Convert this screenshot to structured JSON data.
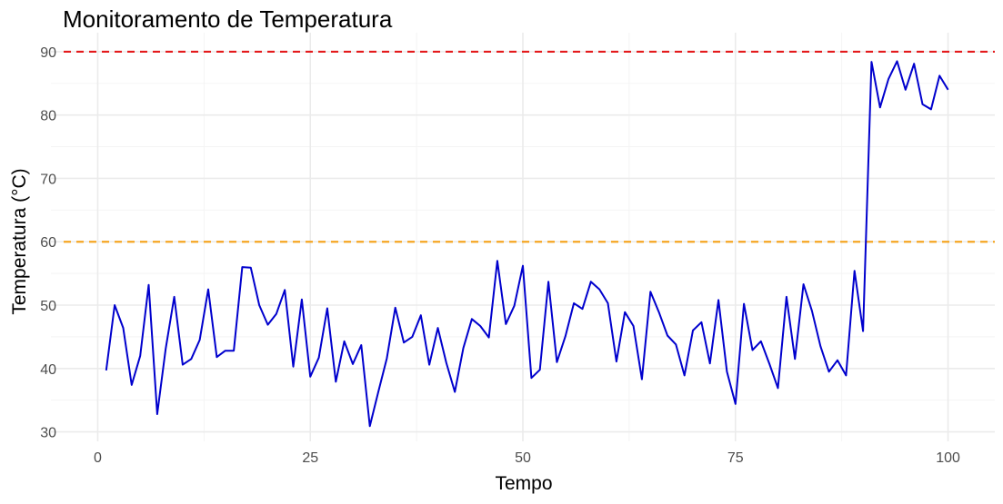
{
  "chart_data": {
    "type": "line",
    "title": "Monitoramento de Temperatura",
    "xlabel": "Tempo",
    "ylabel": "Temperatura (°C)",
    "xlim": [
      -5.5,
      105.5
    ],
    "ylim": [
      28.5,
      93
    ],
    "x_ticks": [
      0,
      25,
      50,
      75,
      100
    ],
    "y_ticks": [
      30,
      40,
      50,
      60,
      70,
      80,
      90
    ],
    "grid": true,
    "reference_lines": [
      {
        "y": 90,
        "color": "#e41a1c",
        "style": "dashed"
      },
      {
        "y": 60,
        "color": "#f5a623",
        "style": "dashed"
      }
    ],
    "series": [
      {
        "color": "#0000cd",
        "x": [
          1,
          2,
          3,
          4,
          5,
          6,
          7,
          8,
          9,
          10,
          11,
          12,
          13,
          14,
          15,
          16,
          17,
          18,
          19,
          20,
          21,
          22,
          23,
          24,
          25,
          26,
          27,
          28,
          29,
          30,
          31,
          32,
          33,
          34,
          35,
          36,
          37,
          38,
          39,
          40,
          41,
          42,
          43,
          44,
          45,
          46,
          47,
          48,
          49,
          50,
          51,
          52,
          53,
          54,
          55,
          56,
          57,
          58,
          59,
          60,
          61,
          62,
          63,
          64,
          65,
          66,
          67,
          68,
          69,
          70,
          71,
          72,
          73,
          74,
          75,
          76,
          77,
          78,
          79,
          80,
          81,
          82,
          83,
          84,
          85,
          86,
          87,
          88,
          89,
          90,
          91,
          92,
          93,
          94,
          95,
          96,
          97,
          98,
          99,
          100
        ],
        "values": [
          39.7,
          50.0,
          46.4,
          37.4,
          42.0,
          53.2,
          32.8,
          43.1,
          51.3,
          40.6,
          41.5,
          44.5,
          52.5,
          41.8,
          42.8,
          42.8,
          56.0,
          55.9,
          50.0,
          46.9,
          48.6,
          52.4,
          40.3,
          50.9,
          38.7,
          41.7,
          49.5,
          37.9,
          44.3,
          40.7,
          43.7,
          30.9,
          36.3,
          41.6,
          49.6,
          44.1,
          45.0,
          48.4,
          40.6,
          46.4,
          40.9,
          36.3,
          43.2,
          47.8,
          46.7,
          44.9,
          57.0,
          47.0,
          49.9,
          56.2,
          38.5,
          39.8,
          53.7,
          41.0,
          45.1,
          50.3,
          49.4,
          53.7,
          52.5,
          50.3,
          41.1,
          48.9,
          46.7,
          38.3,
          52.1,
          48.9,
          45.2,
          43.8,
          38.9,
          46.0,
          47.3,
          40.8,
          50.8,
          39.5,
          34.4,
          50.2,
          42.9,
          44.3,
          40.7,
          36.9,
          51.3,
          41.5,
          53.3,
          49.1,
          43.5,
          39.5,
          41.3,
          38.9,
          55.4,
          45.9,
          88.4,
          81.2,
          85.7,
          88.5,
          84.0,
          88.1,
          81.7,
          80.9,
          86.2,
          84.0
        ]
      }
    ]
  }
}
